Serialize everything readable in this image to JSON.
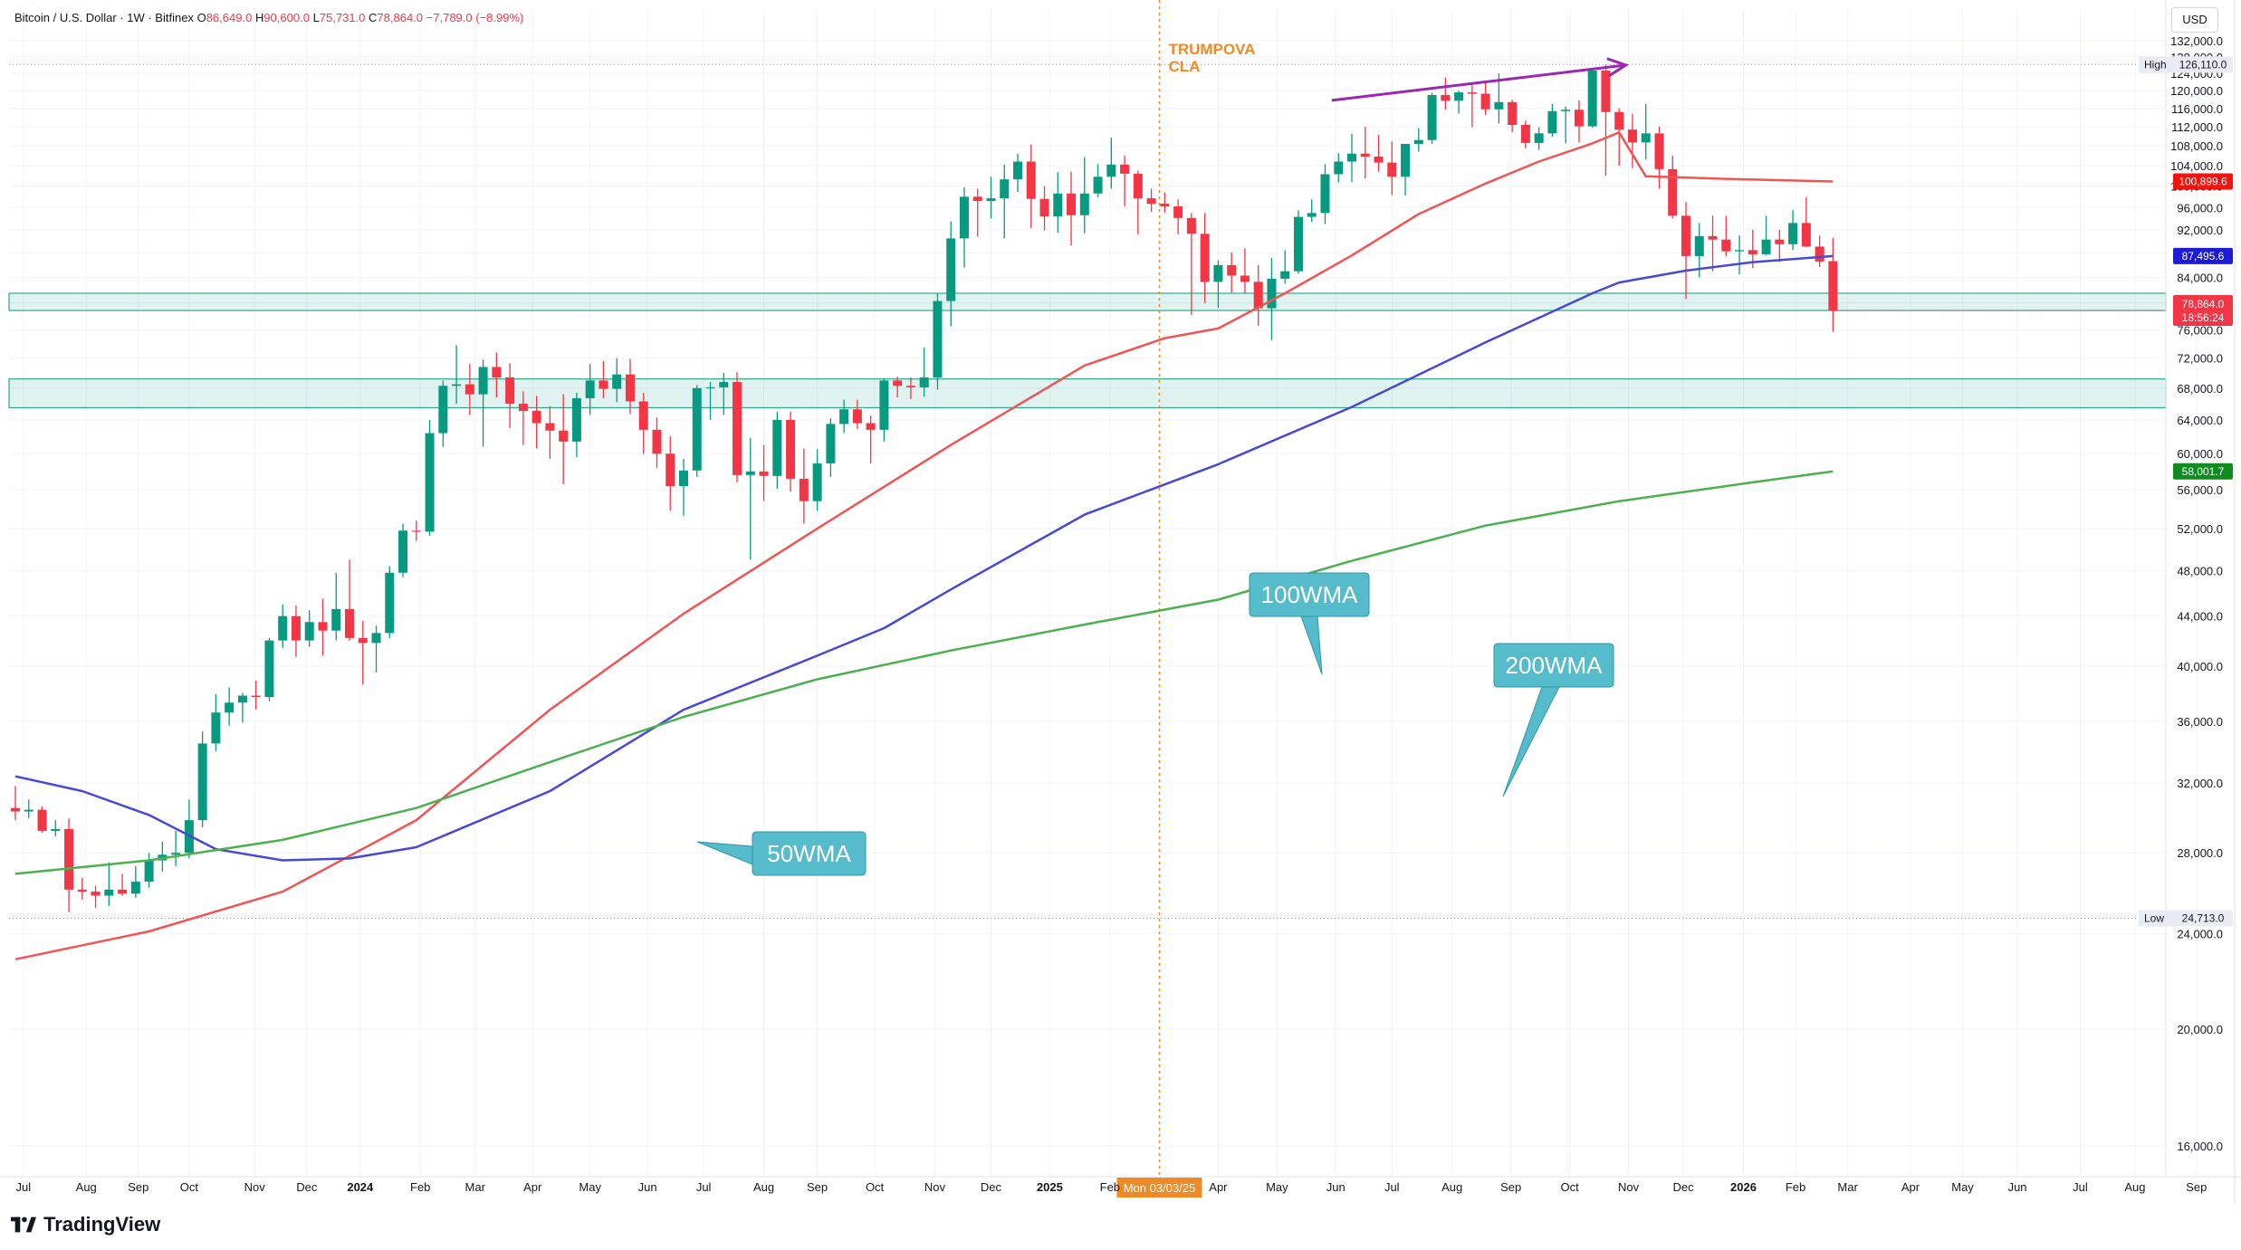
{
  "header": {
    "symbol": "Bitcoin / U.S. Dollar · 1W · Bitfinex",
    "o_label": "O",
    "o_value": "86,649.0",
    "h_label": "H",
    "h_value": "90,600.0",
    "l_label": "L",
    "l_value": "75,731.0",
    "c_label": "C",
    "c_value": "78,864.0",
    "change": "−7,789.0 (−8.99%)"
  },
  "currency_button": "USD",
  "logo_text": "TradingView",
  "event_marker": {
    "label_line1": "TRUMPOVA",
    "label_line2": "CLA",
    "date_label": "Mon 03/03/25",
    "color": "#f08a24"
  },
  "annotations": {
    "wma50": "50WMA",
    "wma100": "100WMA",
    "wma200": "200WMA"
  },
  "price_badges": {
    "high_label": "High",
    "high_value": "126,110.0",
    "low_label": "Low",
    "low_value": "24,713.0",
    "wma50_value": "100,899.6",
    "wma100_value": "87,495.6",
    "wma200_value": "58,001.7",
    "last_value": "78,864.0",
    "countdown": "18:56:24"
  },
  "chart_data": {
    "type": "candlestick",
    "scale": "log",
    "ylim": [
      14500,
      136000
    ],
    "x_range_weeks": [
      0,
      166.5
    ],
    "y_ticks": [
      16000,
      20000,
      24000,
      28000,
      32000,
      36000,
      40000,
      44000,
      48000,
      52000,
      56000,
      60000,
      64000,
      68000,
      72000,
      76000,
      80000,
      84000,
      88000,
      92000,
      96000,
      100000,
      104000,
      108000,
      112000,
      116000,
      120000,
      124000,
      128000,
      132000
    ],
    "x_ticks": [
      {
        "label": "Jul",
        "w": 0.6
      },
      {
        "label": "Aug",
        "w": 5.3
      },
      {
        "label": "Sep",
        "w": 9.2
      },
      {
        "label": "Oct",
        "w": 13.0
      },
      {
        "label": "Nov",
        "w": 17.9
      },
      {
        "label": "Dec",
        "w": 21.8
      },
      {
        "label": "2024",
        "w": 25.8
      },
      {
        "label": "Feb",
        "w": 30.3
      },
      {
        "label": "Mar",
        "w": 34.4
      },
      {
        "label": "Apr",
        "w": 38.7
      },
      {
        "label": "May",
        "w": 43.0
      },
      {
        "label": "Jun",
        "w": 47.3
      },
      {
        "label": "Jul",
        "w": 51.5
      },
      {
        "label": "Aug",
        "w": 56.0
      },
      {
        "label": "Sep",
        "w": 60.0
      },
      {
        "label": "Oct",
        "w": 64.3
      },
      {
        "label": "Nov",
        "w": 68.8
      },
      {
        "label": "Dec",
        "w": 73.0
      },
      {
        "label": "2025",
        "w": 77.4
      },
      {
        "label": "Feb",
        "w": 81.9
      },
      {
        "label": "Apr",
        "w": 90.0
      },
      {
        "label": "May",
        "w": 94.4
      },
      {
        "label": "Jun",
        "w": 98.8
      },
      {
        "label": "Jul",
        "w": 103.0
      },
      {
        "label": "Aug",
        "w": 107.5
      },
      {
        "label": "Sep",
        "w": 111.9
      },
      {
        "label": "Oct",
        "w": 116.3
      },
      {
        "label": "Nov",
        "w": 120.7
      },
      {
        "label": "Dec",
        "w": 124.8
      },
      {
        "label": "2026",
        "w": 129.3
      },
      {
        "label": "Feb",
        "w": 133.2
      },
      {
        "label": "Mar",
        "w": 137.1
      },
      {
        "label": "Apr",
        "w": 141.8
      },
      {
        "label": "May",
        "w": 145.7
      },
      {
        "label": "Jun",
        "w": 149.8
      },
      {
        "label": "Jul",
        "w": 154.5
      },
      {
        "label": "Aug",
        "w": 158.6
      },
      {
        "label": "Sep",
        "w": 163.2
      }
    ],
    "event_line_w": 85.6,
    "support_zones": [
      {
        "low": 78864,
        "high": 81500
      },
      {
        "low": 65500,
        "high": 69200
      }
    ],
    "trendline": {
      "from": {
        "w": 98.5,
        "p": 117800
      },
      "to": {
        "w": 120.5,
        "p": 126000
      },
      "color": "#9c27b0"
    },
    "candles": [
      [
        30500,
        31800,
        29800,
        30300
      ],
      [
        30300,
        31000,
        29900,
        30400
      ],
      [
        30400,
        30600,
        29100,
        29200
      ],
      [
        29200,
        29800,
        28900,
        29300
      ],
      [
        29300,
        29900,
        25000,
        26100
      ],
      [
        26100,
        26700,
        25600,
        26000
      ],
      [
        26000,
        26300,
        25200,
        25800
      ],
      [
        25800,
        27500,
        25300,
        26100
      ],
      [
        26100,
        26900,
        25800,
        25900
      ],
      [
        25900,
        27300,
        25700,
        26500
      ],
      [
        26500,
        28000,
        26200,
        27600
      ],
      [
        27600,
        28600,
        27000,
        27900
      ],
      [
        27900,
        29200,
        27300,
        28000
      ],
      [
        28000,
        31000,
        27700,
        29800
      ],
      [
        29800,
        35300,
        29400,
        34500
      ],
      [
        34500,
        37900,
        34000,
        36600
      ],
      [
        36600,
        38400,
        35700,
        37300
      ],
      [
        37300,
        38000,
        35900,
        37800
      ],
      [
        37800,
        38900,
        36800,
        37700
      ],
      [
        37700,
        42200,
        37400,
        42000
      ],
      [
        42000,
        45000,
        41400,
        44000
      ],
      [
        44000,
        44900,
        40700,
        42000
      ],
      [
        42000,
        44500,
        41500,
        43500
      ],
      [
        43500,
        45500,
        40800,
        42800
      ],
      [
        42800,
        47800,
        42000,
        44600
      ],
      [
        44600,
        49000,
        42000,
        42200
      ],
      [
        42200,
        43600,
        38600,
        41800
      ],
      [
        41800,
        43200,
        39500,
        42600
      ],
      [
        42600,
        48400,
        42200,
        47800
      ],
      [
        47800,
        52500,
        47400,
        51800
      ],
      [
        51800,
        52800,
        50800,
        51700
      ],
      [
        51700,
        64000,
        51300,
        62400
      ],
      [
        62400,
        69000,
        60800,
        68300
      ],
      [
        68300,
        73800,
        66000,
        68500
      ],
      [
        68500,
        71200,
        64600,
        67200
      ],
      [
        67200,
        71800,
        60800,
        70800
      ],
      [
        70800,
        72800,
        66800,
        69400
      ],
      [
        69400,
        71300,
        63000,
        66000
      ],
      [
        66000,
        67600,
        61000,
        65100
      ],
      [
        65100,
        67000,
        60600,
        63600
      ],
      [
        63600,
        65700,
        59400,
        62700
      ],
      [
        62700,
        67200,
        56600,
        61400
      ],
      [
        61400,
        67400,
        59600,
        66700
      ],
      [
        66700,
        71200,
        64600,
        69000
      ],
      [
        69000,
        71600,
        66700,
        67900
      ],
      [
        67900,
        72000,
        66200,
        69800
      ],
      [
        69800,
        71900,
        64700,
        66300
      ],
      [
        66300,
        67400,
        60000,
        62800
      ],
      [
        62800,
        64300,
        58400,
        60000
      ],
      [
        60000,
        62000,
        53800,
        56400
      ],
      [
        56400,
        59400,
        53300,
        58100
      ],
      [
        58100,
        68400,
        57400,
        68000
      ],
      [
        68000,
        68800,
        64000,
        68100
      ],
      [
        68100,
        70000,
        64600,
        68800
      ],
      [
        68800,
        70100,
        56800,
        57600
      ],
      [
        57600,
        61800,
        49000,
        58000
      ],
      [
        58000,
        61000,
        54800,
        57500
      ],
      [
        57500,
        65000,
        56100,
        64000
      ],
      [
        64000,
        65000,
        55800,
        57200
      ],
      [
        57200,
        60600,
        52500,
        54800
      ],
      [
        54800,
        60500,
        53800,
        58900
      ],
      [
        58900,
        64200,
        57400,
        63500
      ],
      [
        63500,
        66500,
        62400,
        65300
      ],
      [
        65300,
        66500,
        62900,
        63600
      ],
      [
        63600,
        64500,
        58900,
        62800
      ],
      [
        62800,
        69300,
        61400,
        69000
      ],
      [
        69000,
        69500,
        66800,
        68300
      ],
      [
        68300,
        69400,
        66600,
        68100
      ],
      [
        68100,
        73500,
        66900,
        69400
      ],
      [
        69400,
        81500,
        67800,
        80300
      ],
      [
        80300,
        93500,
        76500,
        90500
      ],
      [
        90500,
        99800,
        85600,
        98000
      ],
      [
        98000,
        99500,
        90800,
        97200
      ],
      [
        97200,
        101800,
        94000,
        97700
      ],
      [
        97700,
        104200,
        90500,
        101300
      ],
      [
        101300,
        106400,
        98900,
        104800
      ],
      [
        104800,
        108300,
        92300,
        97600
      ],
      [
        97600,
        100000,
        91900,
        94400
      ],
      [
        94400,
        102700,
        91500,
        98600
      ],
      [
        98600,
        102800,
        89300,
        94600
      ],
      [
        94600,
        105700,
        91400,
        98600
      ],
      [
        98600,
        104300,
        97900,
        101800
      ],
      [
        101800,
        109700,
        99500,
        104200
      ],
      [
        104200,
        106000,
        96200,
        102400
      ],
      [
        102400,
        103000,
        91200,
        97700
      ],
      [
        97700,
        99500,
        95200,
        96700
      ],
      [
        96700,
        98800,
        95100,
        96200
      ],
      [
        96200,
        97500,
        91200,
        94100
      ],
      [
        94100,
        95000,
        78200,
        91300
      ],
      [
        91300,
        95000,
        80000,
        83300
      ],
      [
        83300,
        86800,
        79300,
        86000
      ],
      [
        86000,
        88100,
        81600,
        84300
      ],
      [
        84300,
        88800,
        81500,
        83300
      ],
      [
        83300,
        86000,
        76600,
        79200
      ],
      [
        79200,
        87200,
        74500,
        83800
      ],
      [
        83800,
        88500,
        83000,
        85000
      ],
      [
        85000,
        95500,
        84600,
        94300
      ],
      [
        94300,
        97500,
        93400,
        95000
      ],
      [
        95000,
        104300,
        93000,
        102300
      ],
      [
        102300,
        106500,
        100700,
        104800
      ],
      [
        104800,
        110500,
        100800,
        106400
      ],
      [
        106400,
        112000,
        101500,
        105800
      ],
      [
        105800,
        110300,
        102800,
        104600
      ],
      [
        104600,
        108900,
        98300,
        101800
      ],
      [
        101800,
        108000,
        98200,
        108400
      ],
      [
        108400,
        111700,
        106800,
        109200
      ],
      [
        109200,
        119500,
        108400,
        119000
      ],
      [
        119000,
        123000,
        115700,
        117700
      ],
      [
        117700,
        120000,
        114900,
        119600
      ],
      [
        119600,
        121500,
        111900,
        119300
      ],
      [
        119300,
        122300,
        114600,
        115800
      ],
      [
        115800,
        124000,
        112700,
        117400
      ],
      [
        117400,
        117900,
        110800,
        112400
      ],
      [
        112400,
        113300,
        107500,
        108600
      ],
      [
        108600,
        111900,
        107200,
        110600
      ],
      [
        110600,
        117000,
        109900,
        115400
      ],
      [
        115400,
        116400,
        108500,
        115700
      ],
      [
        115700,
        117800,
        108700,
        112100
      ],
      [
        112100,
        124900,
        111800,
        124700
      ],
      [
        124700,
        126100,
        102000,
        115200
      ],
      [
        115200,
        116000,
        104000,
        111400
      ],
      [
        111400,
        114800,
        103500,
        108700
      ],
      [
        108700,
        117000,
        105200,
        110600
      ],
      [
        110600,
        112000,
        99500,
        103300
      ],
      [
        103300,
        106000,
        94000,
        94500
      ],
      [
        94500,
        97000,
        80600,
        87500
      ],
      [
        87500,
        93200,
        84000,
        90900
      ],
      [
        90900,
        94500,
        85000,
        90300
      ],
      [
        90300,
        94500,
        87500,
        88300
      ],
      [
        88300,
        91000,
        84500,
        88500
      ],
      [
        88500,
        92000,
        85500,
        87800
      ],
      [
        87800,
        94500,
        87600,
        90300
      ],
      [
        90300,
        92000,
        86500,
        89500
      ],
      [
        89500,
        95500,
        88500,
        93200
      ],
      [
        93200,
        97900,
        89000,
        89100
      ],
      [
        89100,
        91000,
        85700,
        86600
      ],
      [
        86649,
        90600,
        75731,
        78864
      ]
    ],
    "series": [
      {
        "name": "50WMA",
        "color": "#f05454",
        "points": [
          [
            0,
            22850
          ],
          [
            10,
            24100
          ],
          [
            20,
            26000
          ],
          [
            30,
            29800
          ],
          [
            40,
            36800
          ],
          [
            50,
            44200
          ],
          [
            60,
            52000
          ],
          [
            70,
            61000
          ],
          [
            80,
            71000
          ],
          [
            86,
            74800
          ],
          [
            90,
            76200
          ],
          [
            95,
            81500
          ],
          [
            100,
            87600
          ],
          [
            105,
            94800
          ],
          [
            110,
            100500
          ],
          [
            114,
            104800
          ],
          [
            118,
            108500
          ],
          [
            120,
            110800
          ],
          [
            122,
            101900
          ],
          [
            128,
            101400
          ],
          [
            136,
            100900
          ]
        ]
      },
      {
        "name": "100WMA",
        "color": "#4848d6",
        "points": [
          [
            0,
            32400
          ],
          [
            5,
            31500
          ],
          [
            10,
            30100
          ],
          [
            15,
            28200
          ],
          [
            20,
            27600
          ],
          [
            25,
            27700
          ],
          [
            30,
            28300
          ],
          [
            40,
            31500
          ],
          [
            50,
            36800
          ],
          [
            60,
            40800
          ],
          [
            65,
            43000
          ],
          [
            70,
            46300
          ],
          [
            80,
            53400
          ],
          [
            90,
            58800
          ],
          [
            100,
            65600
          ],
          [
            110,
            74200
          ],
          [
            118,
            81500
          ],
          [
            120,
            83200
          ],
          [
            125,
            85100
          ],
          [
            130,
            86500
          ],
          [
            136,
            87500
          ]
        ]
      },
      {
        "name": "200WMA",
        "color": "#4caf50",
        "points": [
          [
            0,
            26900
          ],
          [
            10,
            27600
          ],
          [
            20,
            28700
          ],
          [
            30,
            30500
          ],
          [
            40,
            33300
          ],
          [
            50,
            36300
          ],
          [
            60,
            39000
          ],
          [
            70,
            41200
          ],
          [
            80,
            43300
          ],
          [
            90,
            45400
          ],
          [
            100,
            48900
          ],
          [
            110,
            52300
          ],
          [
            120,
            54800
          ],
          [
            130,
            56800
          ],
          [
            136,
            58000
          ]
        ]
      }
    ]
  }
}
